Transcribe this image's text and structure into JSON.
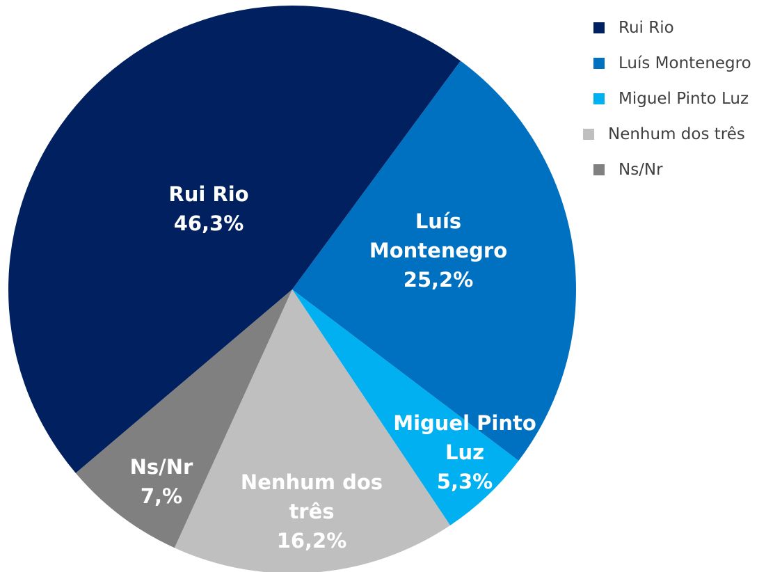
{
  "chart_data": {
    "type": "pie",
    "categories": [
      "Rui Rio",
      "Luís Montenegro",
      "Miguel Pinto Luz",
      "Nenhum dos três",
      "Ns/Nr"
    ],
    "values": [
      46.3,
      25.2,
      5.3,
      16.2,
      7.0
    ],
    "value_labels": [
      "46,3%",
      "25,2%",
      "5,3%",
      "16,2%",
      "7,%"
    ],
    "colors": [
      "#002060",
      "#0070c0",
      "#00b0f0",
      "#bfbfbf",
      "#808080"
    ],
    "legend": "top-right"
  }
}
